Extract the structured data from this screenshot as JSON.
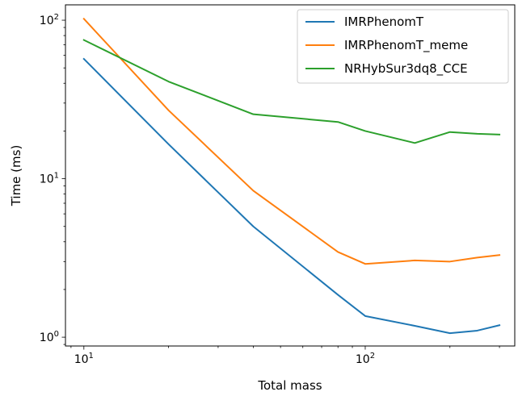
{
  "chart_data": {
    "type": "line",
    "title": "",
    "xlabel": "Total mass",
    "ylabel": "Time (ms)",
    "xscale": "log",
    "yscale": "log",
    "xlim": [
      8.6,
      340
    ],
    "ylim": [
      0.88,
      125
    ],
    "grid": false,
    "legend_position": "top-right",
    "x_ticks": [
      {
        "value": 10,
        "base": "10",
        "exp": "1"
      },
      {
        "value": 100,
        "base": "10",
        "exp": "2"
      }
    ],
    "y_ticks": [
      {
        "value": 1,
        "base": "10",
        "exp": "0"
      },
      {
        "value": 10,
        "base": "10",
        "exp": "1"
      },
      {
        "value": 100,
        "base": "10",
        "exp": "2"
      }
    ],
    "series": [
      {
        "name": "IMRPhenomT",
        "color": "#1f77b4",
        "x": [
          10,
          20,
          40,
          80,
          100,
          150,
          200,
          250,
          300
        ],
        "y": [
          57,
          16.5,
          5.0,
          1.85,
          1.36,
          1.18,
          1.06,
          1.1,
          1.19
        ]
      },
      {
        "name": "IMRPhenomT_meme",
        "color": "#ff7f0e",
        "x": [
          10,
          20,
          40,
          80,
          100,
          150,
          200,
          250,
          300
        ],
        "y": [
          102,
          27,
          8.4,
          3.45,
          2.9,
          3.05,
          3.0,
          3.18,
          3.3
        ]
      },
      {
        "name": "NRHybSur3dq8_CCE",
        "color": "#2ca02c",
        "x": [
          10,
          20,
          40,
          80,
          100,
          150,
          200,
          250,
          300
        ],
        "y": [
          75,
          41,
          25.5,
          22.8,
          20,
          16.8,
          19.7,
          19.2,
          19
        ]
      }
    ]
  }
}
